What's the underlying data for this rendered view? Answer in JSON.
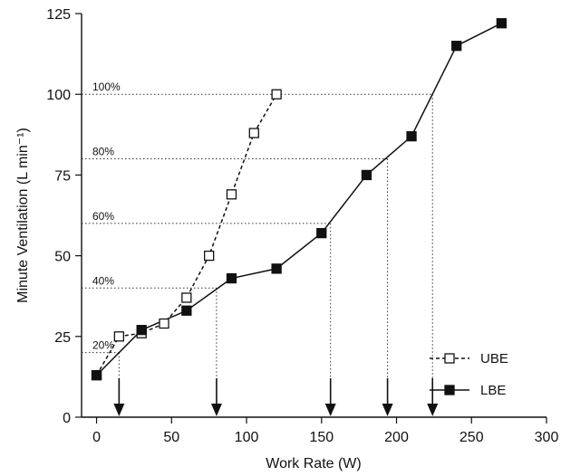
{
  "chart_data": {
    "type": "line",
    "title": "",
    "xlabel": "Work Rate (W)",
    "ylabel": "Minute Ventilation (L min⁻¹)",
    "xlim": [
      -10,
      300
    ],
    "ylim": [
      0,
      125
    ],
    "xticks": [
      0,
      50,
      100,
      150,
      200,
      250,
      300
    ],
    "yticks": [
      0,
      25,
      50,
      75,
      100,
      125
    ],
    "grid": false,
    "legend_position": "bottom-right",
    "series": [
      {
        "name": "UBE",
        "line_style": "dashed",
        "marker": "open-square",
        "color": "#111111",
        "x": [
          0,
          15,
          30,
          45,
          60,
          75,
          90,
          105,
          120
        ],
        "y": [
          13,
          25,
          26,
          29,
          37,
          50,
          69,
          88,
          100
        ]
      },
      {
        "name": "LBE",
        "line_style": "solid",
        "marker": "filled-square",
        "color": "#111111",
        "x": [
          0,
          30,
          60,
          90,
          120,
          150,
          180,
          210,
          240,
          270
        ],
        "y": [
          13,
          27,
          33,
          43,
          46,
          57,
          75,
          87,
          115,
          122
        ]
      }
    ],
    "threshold_annotations": [
      {
        "label": "20%",
        "y": 20,
        "x_end": 15
      },
      {
        "label": "40%",
        "y": 40,
        "x_end": 80
      },
      {
        "label": "60%",
        "y": 60,
        "x_end": 156
      },
      {
        "label": "80%",
        "y": 80,
        "x_end": 194
      },
      {
        "label": "100%",
        "y": 100,
        "x_end": 224
      }
    ]
  }
}
